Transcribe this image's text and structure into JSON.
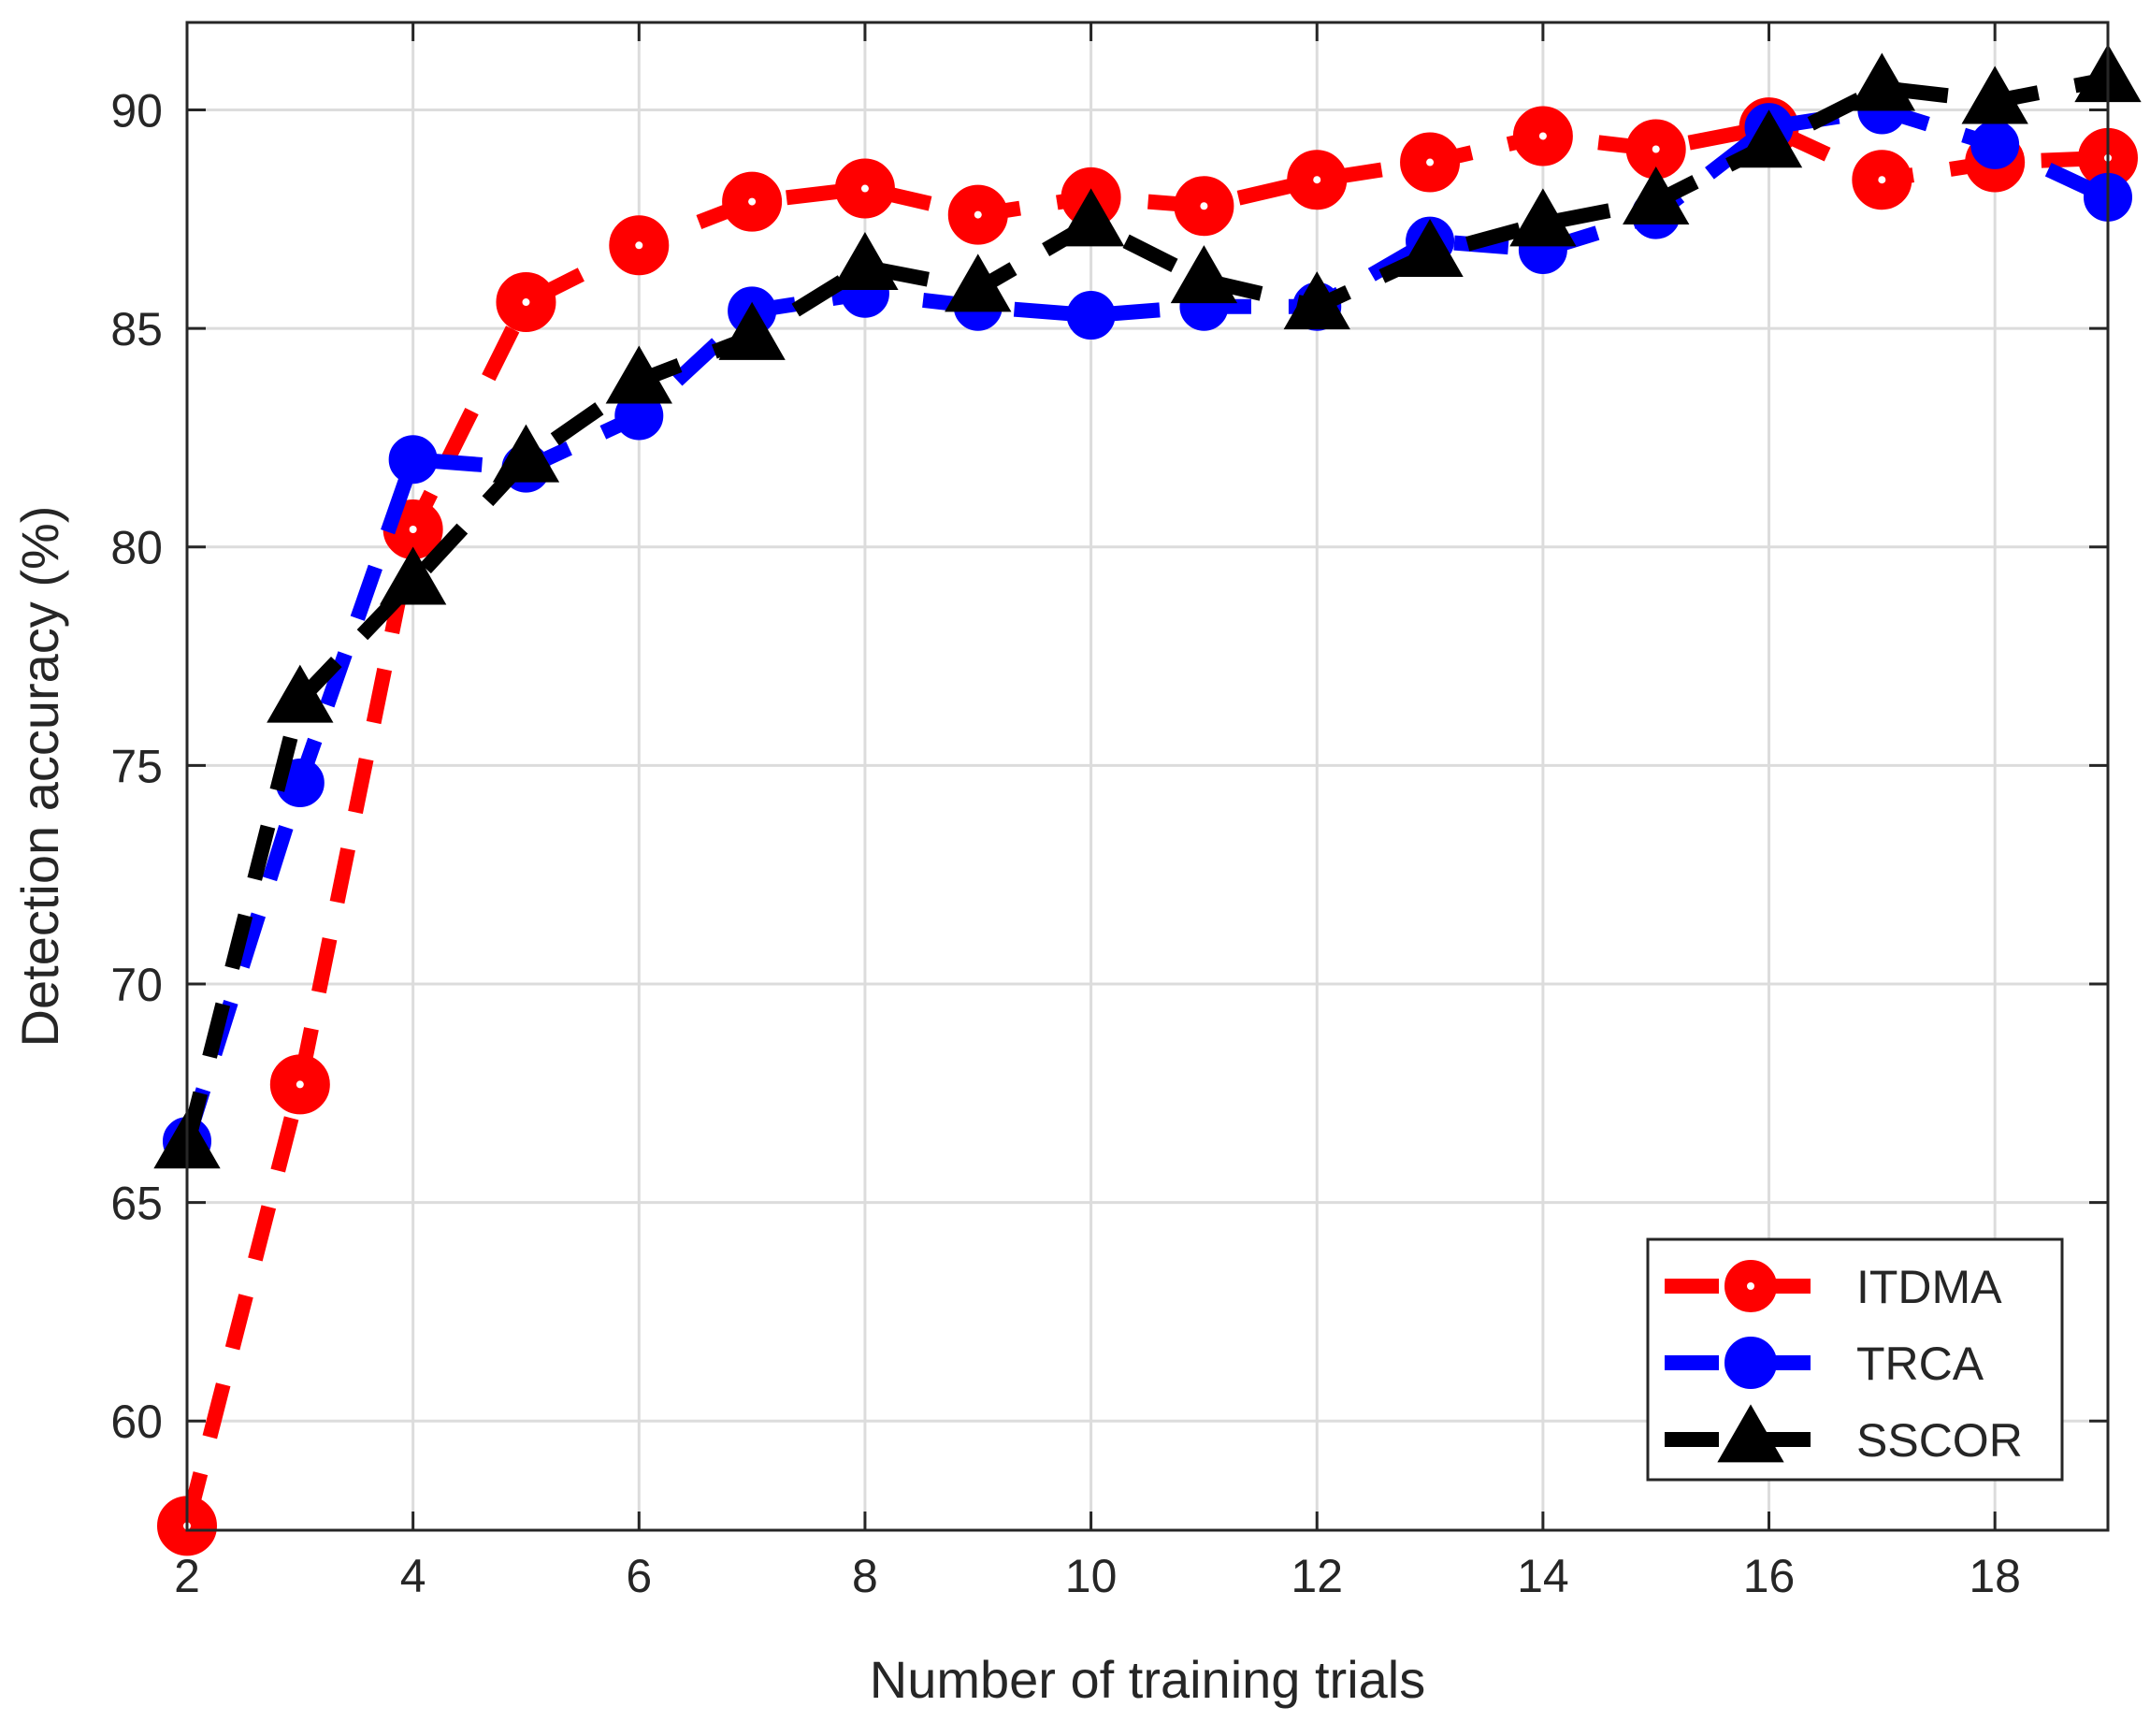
{
  "chart_data": {
    "type": "line",
    "title": "",
    "xlabel": "Number of training trials",
    "ylabel": "Detection accuracy (%)",
    "xlim": [
      2,
      19
    ],
    "ylim": [
      57.5,
      92
    ],
    "xticks": [
      2,
      4,
      6,
      8,
      10,
      12,
      14,
      16,
      18
    ],
    "yticks": [
      60,
      65,
      70,
      75,
      80,
      85,
      90
    ],
    "grid": true,
    "legend_position": "bottom-right",
    "x": [
      2,
      3,
      4,
      5,
      6,
      7,
      8,
      9,
      10,
      11,
      12,
      13,
      14,
      15,
      16,
      17,
      18,
      19
    ],
    "series": [
      {
        "name": "ITDMA",
        "color": "#ff0000",
        "marker": "circle",
        "line_style": "dashed",
        "values": [
          57.6,
          67.7,
          80.4,
          85.6,
          86.9,
          87.9,
          88.2,
          87.6,
          88.0,
          87.8,
          88.4,
          88.8,
          89.4,
          89.1,
          89.6,
          88.4,
          88.8,
          88.9
        ]
      },
      {
        "name": "TRCA",
        "color": "#0000ff",
        "marker": "circle",
        "line_style": "dashed",
        "values": [
          66.4,
          74.6,
          82.0,
          81.8,
          83.0,
          85.4,
          85.8,
          85.5,
          85.3,
          85.5,
          85.5,
          87.0,
          86.8,
          87.6,
          89.6,
          90.0,
          89.2,
          88.0
        ]
      },
      {
        "name": "SSCOR",
        "color": "#000000",
        "marker": "triangle",
        "line_style": "dashed",
        "values": [
          66.3,
          76.5,
          79.2,
          82.0,
          83.8,
          84.8,
          86.4,
          85.9,
          87.4,
          86.1,
          85.5,
          86.7,
          87.4,
          87.9,
          89.2,
          90.5,
          90.2,
          90.7
        ]
      }
    ]
  }
}
